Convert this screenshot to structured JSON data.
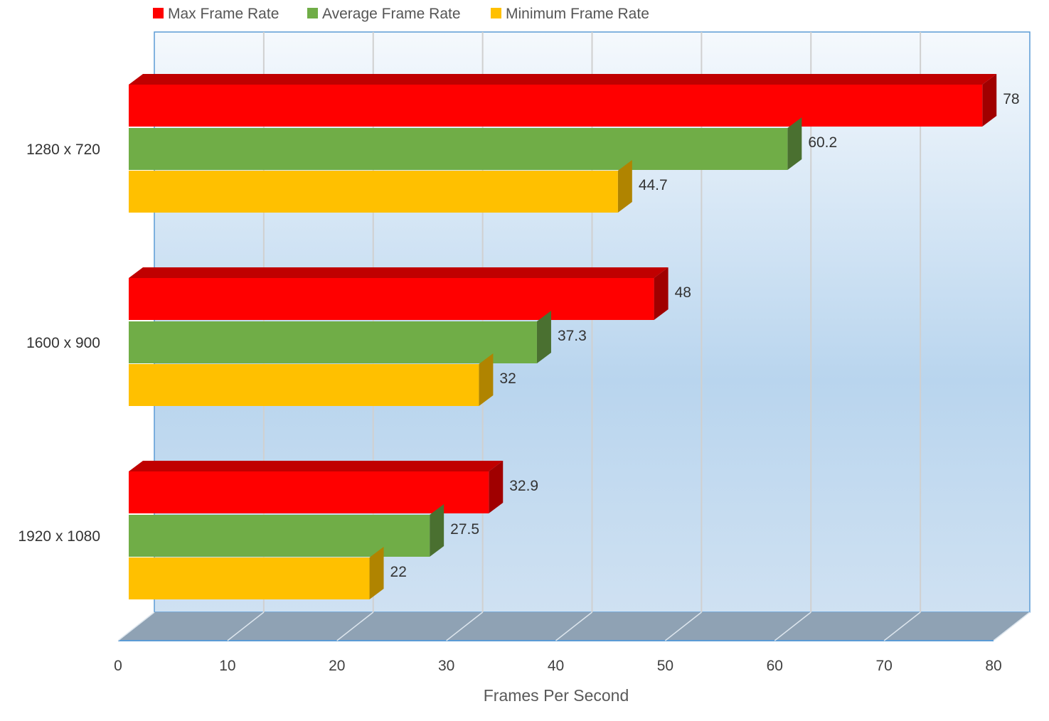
{
  "chart_data": {
    "type": "bar",
    "orientation": "horizontal",
    "style": "3d",
    "categories": [
      "1280 x 720",
      "1600 x 900",
      "1920 x 1080"
    ],
    "series": [
      {
        "name": "Max Frame Rate",
        "color": "#ff0000",
        "values": [
          78,
          48,
          32.9
        ]
      },
      {
        "name": "Average Frame Rate",
        "color": "#70ad47",
        "values": [
          60.2,
          37.3,
          27.5
        ]
      },
      {
        "name": "Minimum Frame Rate",
        "color": "#ffc000",
        "values": [
          44.7,
          32,
          22
        ]
      }
    ],
    "xlabel": "Frames Per Second",
    "ylabel": "",
    "xlim": [
      0,
      80
    ],
    "xticks": [
      "0",
      "10",
      "20",
      "30",
      "40",
      "50",
      "60",
      "70",
      "80"
    ],
    "grid": true,
    "legend": "top",
    "data_labels": true
  }
}
